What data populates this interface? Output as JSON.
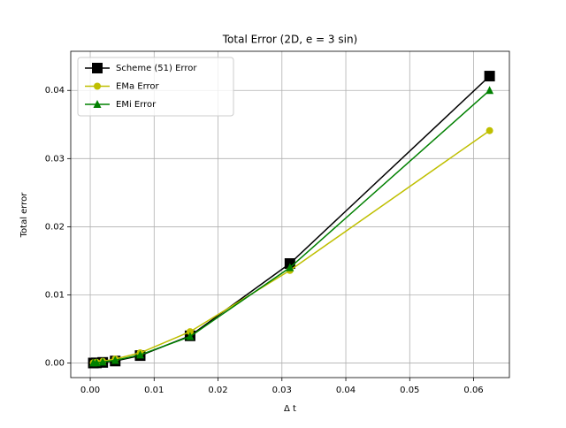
{
  "chart_data": {
    "type": "line",
    "title": "Total Error (2D, e = 3 sin)",
    "x_label": "Δ t",
    "y_label": "Total error",
    "x": [
      0.0625,
      0.03125,
      0.015625,
      0.0078125,
      0.00390625,
      0.001953125,
      0.0009765625,
      0.00048828125
    ],
    "series": [
      {
        "name": "Scheme (51) Error",
        "color": "#000000",
        "marker": "square",
        "values": [
          0.0421,
          0.0146,
          0.004,
          0.0011,
          0.0003,
          0.0001,
          3e-05,
          1e-05
        ]
      },
      {
        "name": "EMa Error",
        "color": "#bfbf00",
        "marker": "circle",
        "values": [
          0.0341,
          0.0136,
          0.0046,
          0.0015,
          0.0006,
          0.00025,
          0.0001,
          5e-05
        ]
      },
      {
        "name": "EMi Error",
        "color": "#008000",
        "marker": "triangle",
        "values": [
          0.04,
          0.014,
          0.0039,
          0.0012,
          0.0004,
          0.00015,
          5e-05,
          2e-05
        ]
      }
    ],
    "xlim": [
      -0.00305,
      0.0656
    ],
    "ylim": [
      -0.00213,
      0.04574
    ],
    "xticks": [
      {
        "value": 0,
        "label": "0.00"
      },
      0.01,
      0.02,
      0.03,
      0.04,
      0.05,
      0.06
    ],
    "yticks": [
      {
        "value": 0,
        "label": "0.00"
      },
      0.01,
      0.02,
      0.03,
      0.04
    ],
    "grid": true,
    "legend": "upper-left"
  }
}
